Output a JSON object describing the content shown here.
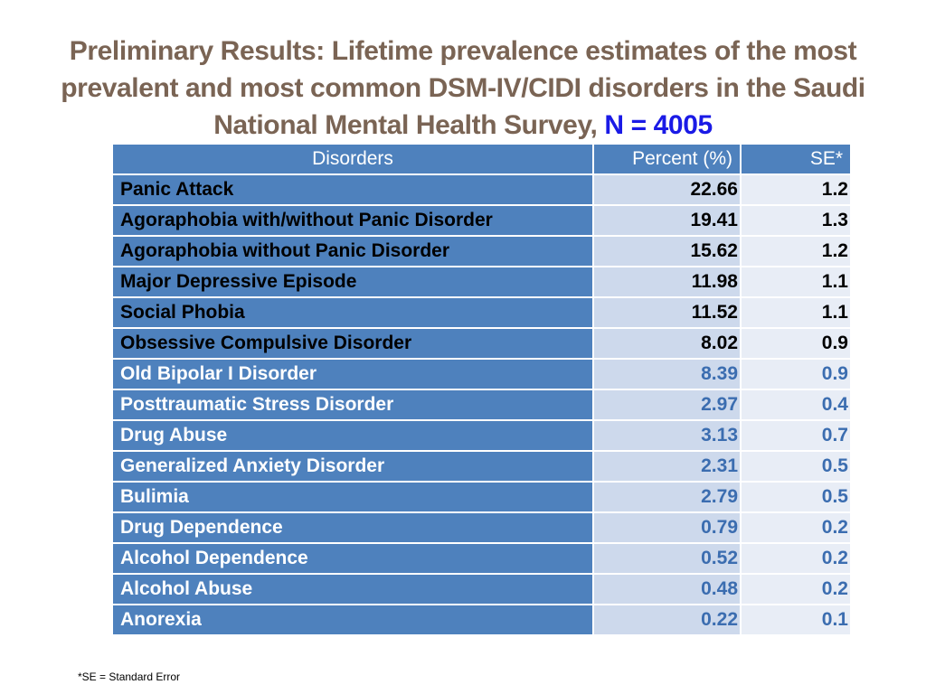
{
  "title": {
    "text": "Preliminary Results: Lifetime prevalence estimates of the most prevalent and most common DSM-IV/CIDI disorders in the Saudi National Mental Health Survey,",
    "highlight": "N = 4005"
  },
  "table": {
    "headers": {
      "disorders": "Disorders",
      "percent": "Percent (%)",
      "se": "SE*"
    },
    "rows": [
      {
        "disorder": "Panic Attack",
        "percent": "22.66",
        "se": "1.2",
        "style": "dark"
      },
      {
        "disorder": "Agoraphobia with/without Panic Disorder",
        "percent": "19.41",
        "se": "1.3",
        "style": "dark"
      },
      {
        "disorder": "Agoraphobia without Panic Disorder",
        "percent": "15.62",
        "se": "1.2",
        "style": "dark"
      },
      {
        "disorder": "Major Depressive Episode",
        "percent": "11.98",
        "se": "1.1",
        "style": "dark"
      },
      {
        "disorder": "Social Phobia",
        "percent": "11.52",
        "se": "1.1",
        "style": "dark"
      },
      {
        "disorder": "Obsessive Compulsive Disorder",
        "percent": "8.02",
        "se": "0.9",
        "style": "dark"
      },
      {
        "disorder": "Old Bipolar I Disorder",
        "percent": "8.39",
        "se": "0.9",
        "style": "light"
      },
      {
        "disorder": "Posttraumatic Stress Disorder",
        "percent": "2.97",
        "se": "0.4",
        "style": "light"
      },
      {
        "disorder": "Drug Abuse",
        "percent": "3.13",
        "se": "0.7",
        "style": "light"
      },
      {
        "disorder": "Generalized Anxiety Disorder",
        "percent": "2.31",
        "se": "0.5",
        "style": "light"
      },
      {
        "disorder": "Bulimia",
        "percent": "2.79",
        "se": "0.5",
        "style": "light"
      },
      {
        "disorder": "Drug Dependence",
        "percent": "0.79",
        "se": "0.2",
        "style": "light"
      },
      {
        "disorder": "Alcohol Dependence",
        "percent": "0.52",
        "se": "0.2",
        "style": "light"
      },
      {
        "disorder": "Alcohol Abuse",
        "percent": "0.48",
        "se": "0.2",
        "style": "light"
      },
      {
        "disorder": "Anorexia",
        "percent": "0.22",
        "se": "0.1",
        "style": "light"
      }
    ]
  },
  "footnote": "*SE = Standard Error",
  "colors": {
    "title": "#7a6454",
    "highlight": "#1a1ae6",
    "header_bg": "#4e81bd",
    "percent_bg": "#cdd9ec",
    "se_bg": "#e8edf6",
    "light_value_text": "#3b6db0"
  }
}
